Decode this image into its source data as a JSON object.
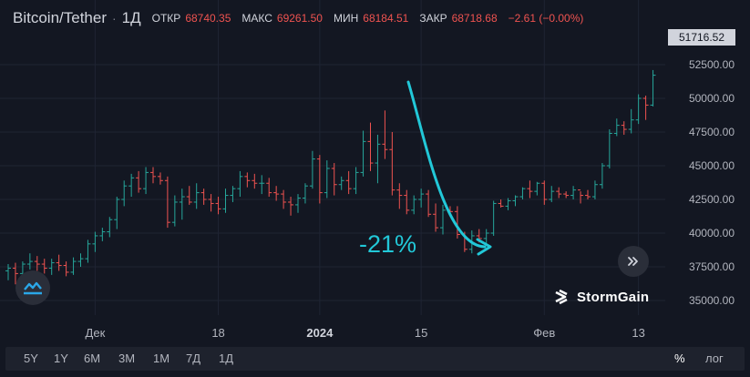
{
  "legend": {
    "symbol": "Bitcoin/Tether",
    "interval": "1Д",
    "open_label": "ОТКР",
    "open": "68740.35",
    "high_label": "МАКС",
    "high": "69261.50",
    "low_label": "МИН",
    "low": "68184.51",
    "close_label": "ЗАКР",
    "close": "68718.68",
    "change": "−2.61 (−0.00%)"
  },
  "colors": {
    "background": "#131722",
    "up": "#26a69a",
    "down": "#ef5350",
    "annotation": "#22c8d8",
    "text": "#b2b5be"
  },
  "annotation": "-21%",
  "brand": "StormGain",
  "icons": {
    "logo": "cloud-wave-icon",
    "scroll": "double-chevron-right-icon"
  },
  "last_price": "51716.52",
  "timeframes": [
    "5Y",
    "1Y",
    "6M",
    "3M",
    "1M",
    "7Д",
    "1Д"
  ],
  "scale_options": {
    "percent": "%",
    "log": "лог"
  },
  "chart_data": {
    "type": "ohlc",
    "title": "Bitcoin/Tether · 1Д",
    "ylim": [
      34000,
      52500
    ],
    "y_ticks": [
      35000,
      37500,
      40000,
      42500,
      45000,
      47500,
      50000,
      52500
    ],
    "y_tick_labels": [
      "35000.00",
      "37500.00",
      "40000.00",
      "42500.00",
      "45000.00",
      "47500.00",
      "50000.00",
      "52500.00"
    ],
    "x_tick_labels": [
      {
        "label": "Дек",
        "index": 12
      },
      {
        "label": "18",
        "index": 29
      },
      {
        "label": "2024",
        "index": 43
      },
      {
        "label": "15",
        "index": 57
      },
      {
        "label": "Фев",
        "index": 74
      },
      {
        "label": "13",
        "index": 87
      }
    ],
    "ohlc": [
      [
        37200,
        37700,
        36500,
        37400
      ],
      [
        37400,
        37800,
        36200,
        37000
      ],
      [
        37000,
        37900,
        36700,
        37700
      ],
      [
        37700,
        38500,
        37300,
        37900
      ],
      [
        37900,
        38300,
        37200,
        37700
      ],
      [
        37700,
        38100,
        37000,
        37400
      ],
      [
        37400,
        38100,
        36900,
        37800
      ],
      [
        37800,
        38400,
        37200,
        37600
      ],
      [
        37600,
        37900,
        36800,
        37100
      ],
      [
        37100,
        38200,
        36900,
        37900
      ],
      [
        37900,
        38500,
        37500,
        38100
      ],
      [
        38100,
        39500,
        37800,
        39200
      ],
      [
        39200,
        40100,
        38600,
        39800
      ],
      [
        39800,
        40400,
        39400,
        40100
      ],
      [
        40100,
        41200,
        39700,
        41000
      ],
      [
        41000,
        42700,
        40300,
        42500
      ],
      [
        42500,
        43900,
        42000,
        43500
      ],
      [
        43500,
        44400,
        42700,
        44100
      ],
      [
        44100,
        44600,
        43000,
        43300
      ],
      [
        43300,
        44900,
        42900,
        44500
      ],
      [
        44500,
        44900,
        43700,
        44200
      ],
      [
        44200,
        44500,
        43600,
        43900
      ],
      [
        43900,
        44200,
        40400,
        40800
      ],
      [
        40800,
        42800,
        40500,
        42300
      ],
      [
        42300,
        43300,
        41000,
        42700
      ],
      [
        42700,
        43500,
        42100,
        42300
      ],
      [
        42300,
        43700,
        41800,
        43000
      ],
      [
        43000,
        43300,
        42100,
        42500
      ],
      [
        42500,
        42900,
        41600,
        42200
      ],
      [
        42200,
        42700,
        41400,
        41800
      ],
      [
        41800,
        43300,
        41500,
        42800
      ],
      [
        42800,
        43500,
        42300,
        43300
      ],
      [
        43300,
        44600,
        42700,
        44200
      ],
      [
        44200,
        44500,
        43400,
        43900
      ],
      [
        43900,
        44400,
        43300,
        43700
      ],
      [
        43700,
        44300,
        42900,
        43700
      ],
      [
        43700,
        44100,
        42700,
        43000
      ],
      [
        43000,
        43500,
        42400,
        42900
      ],
      [
        42900,
        43200,
        41800,
        42300
      ],
      [
        42300,
        42700,
        41300,
        42100
      ],
      [
        42100,
        42900,
        41500,
        42600
      ],
      [
        42600,
        43700,
        42200,
        43500
      ],
      [
        43500,
        46100,
        43300,
        45500
      ],
      [
        45500,
        45800,
        42200,
        43000
      ],
      [
        43000,
        45400,
        42600,
        44800
      ],
      [
        44800,
        45200,
        42800,
        43600
      ],
      [
        43600,
        44200,
        43200,
        43900
      ],
      [
        43900,
        44600,
        42900,
        43300
      ],
      [
        43300,
        44900,
        42900,
        44500
      ],
      [
        44500,
        47600,
        44200,
        46800
      ],
      [
        46800,
        48200,
        44600,
        45200
      ],
      [
        45200,
        47300,
        43700,
        46600
      ],
      [
        46600,
        49100,
        45500,
        46200
      ],
      [
        46200,
        47500,
        42800,
        43200
      ],
      [
        43200,
        43700,
        41800,
        42800
      ],
      [
        42800,
        43200,
        41400,
        41700
      ],
      [
        41700,
        42800,
        41400,
        42500
      ],
      [
        42500,
        43300,
        41900,
        42900
      ],
      [
        42900,
        43200,
        41200,
        41400
      ],
      [
        41400,
        42200,
        40100,
        40400
      ],
      [
        40400,
        42100,
        39900,
        41700
      ],
      [
        41700,
        42000,
        41300,
        41600
      ],
      [
        41600,
        42000,
        39600,
        39900
      ],
      [
        39900,
        40100,
        38600,
        38800
      ],
      [
        38800,
        40200,
        38500,
        39800
      ],
      [
        39800,
        40300,
        39300,
        39600
      ],
      [
        39600,
        40300,
        39200,
        40000
      ],
      [
        40000,
        42400,
        39800,
        42200
      ],
      [
        42200,
        42500,
        41900,
        42000
      ],
      [
        42000,
        42600,
        41700,
        42400
      ],
      [
        42400,
        42800,
        42000,
        42700
      ],
      [
        42700,
        43400,
        42500,
        43300
      ],
      [
        43300,
        43900,
        42600,
        43100
      ],
      [
        43100,
        43800,
        42800,
        43700
      ],
      [
        43700,
        43900,
        42100,
        42500
      ],
      [
        42500,
        43500,
        42300,
        43100
      ],
      [
        43100,
        43400,
        42600,
        42900
      ],
      [
        42900,
        43100,
        42600,
        42800
      ],
      [
        42800,
        43500,
        42500,
        43200
      ],
      [
        43200,
        43100,
        42200,
        42800
      ],
      [
        42800,
        43200,
        42500,
        42700
      ],
      [
        42700,
        43900,
        42500,
        43600
      ],
      [
        43600,
        45200,
        43300,
        45000
      ],
      [
        45000,
        47700,
        44800,
        47400
      ],
      [
        47400,
        48500,
        47200,
        48000
      ],
      [
        48000,
        48300,
        47300,
        47700
      ],
      [
        47700,
        49200,
        47400,
        48400
      ],
      [
        48400,
        50300,
        48100,
        50000
      ],
      [
        50000,
        50200,
        48400,
        49500
      ],
      [
        49500,
        52100,
        49400,
        51716
      ]
    ]
  }
}
